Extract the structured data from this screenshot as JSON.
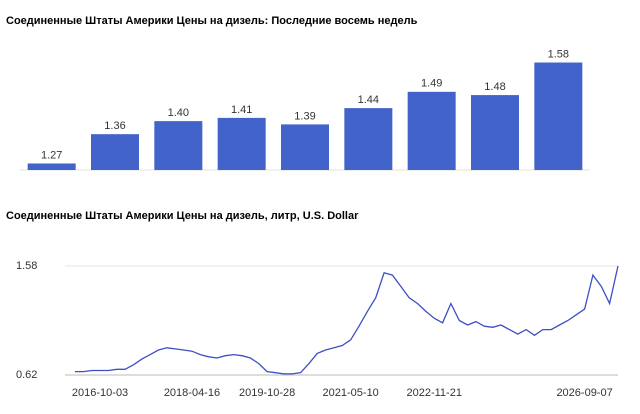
{
  "chart_data": [
    {
      "type": "bar",
      "title": "Соединенные Штаты Америки Цены на дизель: Последние восемь недель",
      "categories": [
        null,
        null,
        null,
        null,
        null,
        null,
        null,
        null,
        null
      ],
      "values": [
        1.27,
        1.36,
        1.4,
        1.41,
        1.39,
        1.44,
        1.49,
        1.48,
        1.58
      ],
      "value_labels": [
        "1.27",
        "1.36",
        "1.40",
        "1.41",
        "1.39",
        "1.44",
        "1.49",
        "1.48",
        "1.58"
      ],
      "color": "#4263c9",
      "ylim": [
        1.25,
        1.6
      ]
    },
    {
      "type": "line",
      "title": "Соединенные Штаты Америки Цены на дизель, литр, U.S. Dollar",
      "categories": [
        null,
        null,
        null,
        "2016-10-03",
        null,
        null,
        null,
        null,
        null,
        null,
        null,
        null,
        null,
        null,
        "2018-04-16",
        null,
        null,
        null,
        null,
        null,
        null,
        null,
        null,
        "2019-10-28",
        null,
        null,
        null,
        null,
        null,
        null,
        null,
        null,
        null,
        "2021-05-10",
        null,
        null,
        null,
        null,
        null,
        null,
        null,
        null,
        null,
        "2022-11-21",
        null,
        null,
        null,
        null,
        null,
        null,
        null,
        null,
        null,
        null,
        null,
        null,
        null,
        null,
        null,
        null,
        null,
        "2026-09-07",
        null,
        null,
        null,
        null
      ],
      "series": [
        {
          "name": "Цены на дизель",
          "color": "#3d4fc4",
          "values": [
            0.65,
            0.65,
            0.66,
            0.66,
            0.66,
            0.67,
            0.67,
            0.71,
            0.76,
            0.8,
            0.84,
            0.86,
            0.85,
            0.84,
            0.83,
            0.8,
            0.78,
            0.77,
            0.79,
            0.8,
            0.79,
            0.77,
            0.72,
            0.65,
            0.64,
            0.63,
            0.63,
            0.64,
            0.72,
            0.81,
            0.84,
            0.86,
            0.88,
            0.93,
            1.05,
            1.18,
            1.3,
            1.52,
            1.5,
            1.4,
            1.3,
            1.25,
            1.18,
            1.12,
            1.08,
            1.25,
            1.1,
            1.06,
            1.09,
            1.05,
            1.04,
            1.06,
            1.02,
            0.98,
            1.02,
            0.97,
            1.02,
            1.02,
            1.06,
            1.1,
            1.15,
            1.2,
            1.5,
            1.4,
            1.25,
            1.58
          ]
        }
      ],
      "ylim": [
        0.62,
        1.58
      ],
      "yticks": [
        0.62,
        1.58
      ],
      "grid": true
    }
  ]
}
